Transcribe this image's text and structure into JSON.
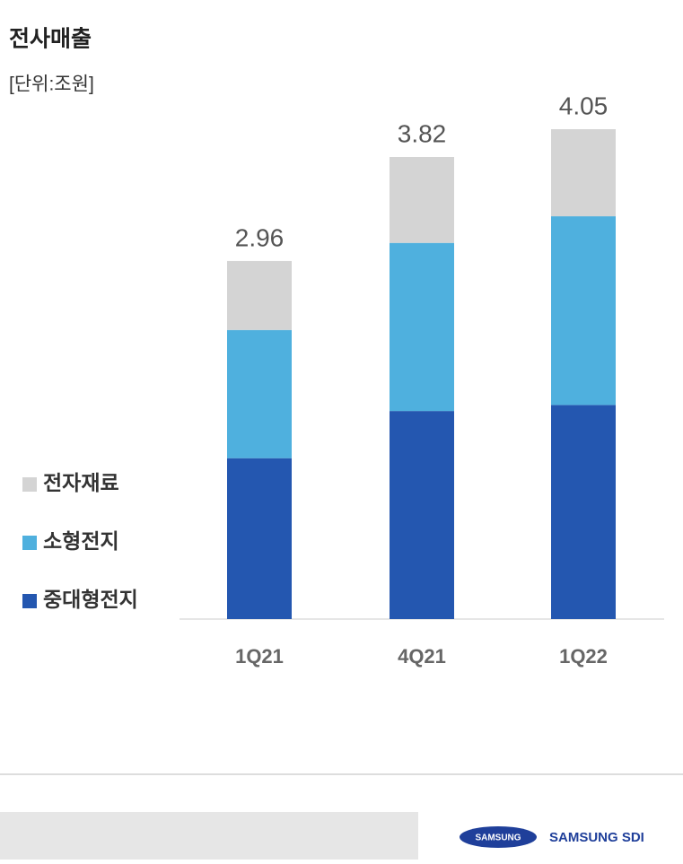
{
  "chart_data": {
    "type": "stacked_bar",
    "title": "전사매출",
    "subtitle": "[단위:조원]",
    "categories": [
      "1Q21",
      "4Q21",
      "1Q22"
    ],
    "series": [
      {
        "name": "중대형전지",
        "color": "#2457b0",
        "values": [
          1.33,
          1.72,
          1.77
        ]
      },
      {
        "name": "소형전지",
        "color": "#4fb0de",
        "values": [
          1.06,
          1.39,
          1.56
        ]
      },
      {
        "name": "전자재료",
        "color": "#d4d4d4",
        "values": [
          0.57,
          0.71,
          0.72
        ]
      }
    ],
    "totals": [
      2.96,
      3.82,
      4.05
    ]
  },
  "footer": {
    "logo": "SAMSUNG",
    "brand": "SAMSUNG SDI"
  }
}
